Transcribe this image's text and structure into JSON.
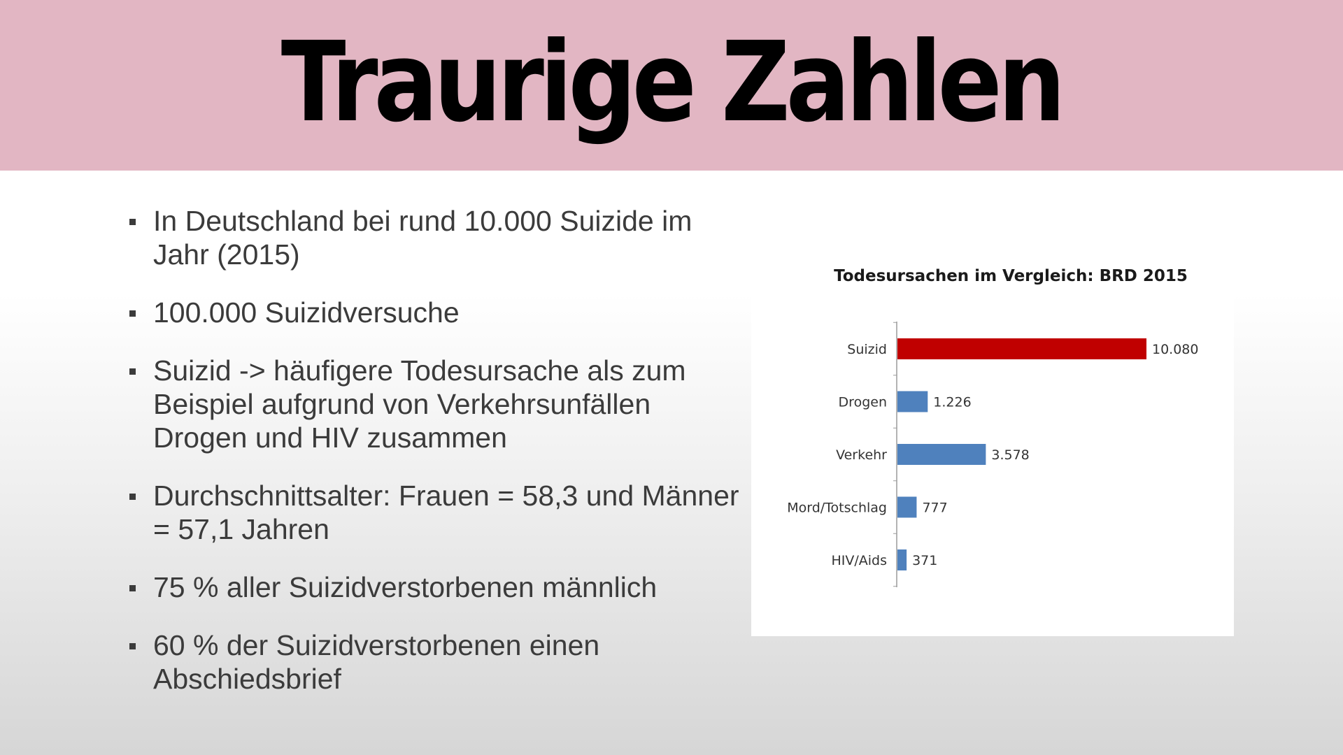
{
  "slide": {
    "title": "Traurige Zahlen"
  },
  "bullets": [
    {
      "text": "In Deutschland bei rund 10.000 Suizide im Jahr (2015)"
    },
    {
      "text": "100.000 Suizidversuche"
    },
    {
      "text": "Suizid -> häufigere Todesursache als zum Beispiel aufgrund von Verkehrsunfällen Drogen und HIV zusammen"
    },
    {
      "text": "Durchschnittsalter: Frauen = 58,3 und Männer = 57,1 Jahren"
    },
    {
      "text": "75 % aller Suizidverstorbenen männlich"
    },
    {
      "text": "60 % der Suizidverstorbenen einen Abschiedsbrief"
    }
  ],
  "colors": {
    "header_background": "#e2b6c3",
    "highlight_bar": "#c00000",
    "default_bar": "#4f81bd"
  },
  "chart_data": {
    "type": "bar",
    "orientation": "horizontal",
    "title": "Todesursachen im Vergleich: BRD 2015",
    "categories": [
      "Suizid",
      "Drogen",
      "Verkehr",
      "Mord/Totschlag",
      "HIV/Aids"
    ],
    "values": [
      10080,
      1226,
      3578,
      777,
      371
    ],
    "value_labels": [
      "10.080",
      "1.226",
      "3.578",
      "777",
      "371"
    ],
    "highlight_category": "Suizid",
    "xlabel": "",
    "ylabel": "",
    "xlim": [
      0,
      10080
    ],
    "grid": false,
    "legend": "none"
  }
}
